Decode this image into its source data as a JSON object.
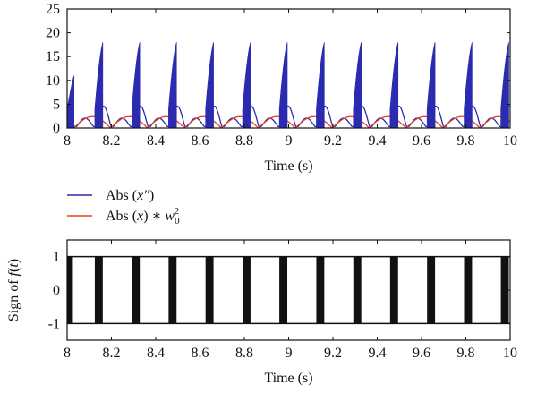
{
  "chart_data": [
    {
      "type": "line",
      "panel": "top",
      "xlabel": "Time (s)",
      "ylabel": "",
      "xlim": [
        8,
        10
      ],
      "ylim": [
        0,
        25
      ],
      "xticks": [
        "8",
        "8.2",
        "8.4",
        "8.6",
        "8.8",
        "9",
        "9.2",
        "9.4",
        "9.6",
        "9.8",
        "10"
      ],
      "yticks": [
        "0",
        "5",
        "10",
        "15",
        "20",
        "25"
      ],
      "grid": false,
      "legend_position": "below plot, left",
      "series": [
        {
          "name": "Abs (x″)",
          "label_parts": [
            "Abs (",
            "x",
            "″",
            ")"
          ],
          "color": "#2b2bb0",
          "period": 0.1667,
          "burst_peaks": [
            11,
            18,
            18,
            18,
            18,
            18,
            18,
            18,
            18,
            18,
            18,
            18,
            18
          ],
          "burst_start_times": [
            7.995,
            8.125,
            8.292,
            8.458,
            8.625,
            8.792,
            8.958,
            9.125,
            9.292,
            9.458,
            9.625,
            9.792,
            9.958
          ],
          "envelope_peak": 4.6
        },
        {
          "name": "Abs (x) * w0²",
          "label_parts": [
            "Abs (",
            "x",
            ") ∗ ",
            "w",
            "0",
            "2"
          ],
          "color": "#e8401c",
          "peak": 2.4,
          "period": 0.1667
        }
      ]
    },
    {
      "type": "line",
      "panel": "bottom",
      "xlabel": "Time (s)",
      "ylabel": "Sign of f(t)",
      "ylabel_parts": [
        "Sign of ",
        "f",
        "(",
        "t",
        ")"
      ],
      "xlim": [
        8,
        10
      ],
      "ylim": [
        -1.5,
        1.5
      ],
      "xticks": [
        "8",
        "8.2",
        "8.4",
        "8.6",
        "8.8",
        "9",
        "9.2",
        "9.4",
        "9.6",
        "9.8",
        "10"
      ],
      "yticks": [
        "-1",
        "0",
        "1"
      ],
      "grid": false,
      "series": [
        {
          "name": "Sign of f(t)",
          "color": "#111111",
          "values": [
            -1,
            1
          ],
          "burst_start_times": [
            7.99,
            8.125,
            8.292,
            8.458,
            8.625,
            8.792,
            8.958,
            9.125,
            9.292,
            9.458,
            9.625,
            9.792,
            9.958
          ],
          "burst_width": 0.036
        }
      ]
    }
  ]
}
